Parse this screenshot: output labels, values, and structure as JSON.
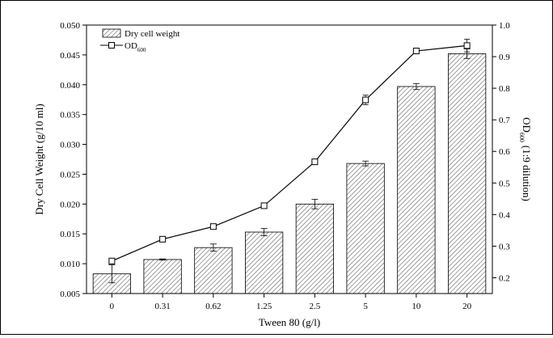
{
  "chart_data": {
    "type": "bar",
    "xlabel": "Tween 80 (g/l)",
    "ylabel_left": "Dry Cell Weight (g/10 ml)",
    "ylabel_right": {
      "pre": "OD",
      "sub": "600",
      "post": "(1:9 dilution)"
    },
    "categories": [
      "0",
      "0.31",
      "0.62",
      "1.25",
      "2.5",
      "5",
      "10",
      "20"
    ],
    "ylim_left": [
      0.005,
      0.05
    ],
    "yticks_left": [
      "0.005",
      "0.010",
      "0.015",
      "0.020",
      "0.025",
      "0.030",
      "0.035",
      "0.040",
      "0.045",
      "0.050"
    ],
    "ylim_right": [
      0.15,
      1.0
    ],
    "yticks_right": [
      "0.2",
      "0.3",
      "0.4",
      "0.5",
      "0.6",
      "0.7",
      "0.8",
      "0.9",
      "1.0"
    ],
    "series": [
      {
        "name": "Dry cell weight",
        "kind": "bar",
        "axis": "left",
        "values": [
          0.0083,
          0.0107,
          0.0127,
          0.0153,
          0.02,
          0.0268,
          0.0397,
          0.0452
        ],
        "errors": [
          0.0015,
          0.0001,
          0.0006,
          0.0006,
          0.0008,
          0.0004,
          0.0005,
          0.0008
        ]
      },
      {
        "name": "OD",
        "name_sub": "600",
        "kind": "line",
        "axis": "right",
        "values": [
          0.253,
          0.322,
          0.362,
          0.428,
          0.567,
          0.763,
          0.918,
          0.935
        ],
        "errors": [
          0.005,
          0.003,
          0.008,
          0.005,
          0.004,
          0.015,
          0.008,
          0.02
        ]
      }
    ],
    "legend_position": "top-left",
    "grid": false
  }
}
